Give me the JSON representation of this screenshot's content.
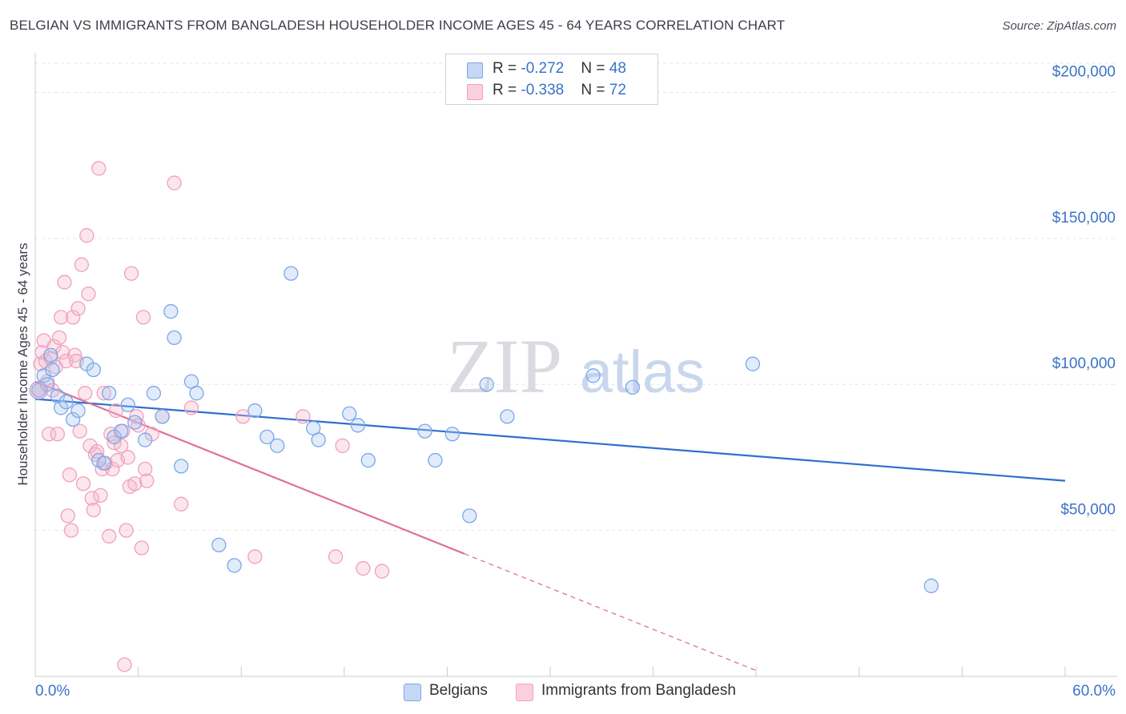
{
  "title": "BELGIAN VS IMMIGRANTS FROM BANGLADESH HOUSEHOLDER INCOME AGES 45 - 64 YEARS CORRELATION CHART",
  "source": "Source: ZipAtlas.com",
  "watermark": {
    "zip": "ZIP",
    "atlas": "atlas"
  },
  "legend": {
    "rows": [
      {
        "r_label": "R = ",
        "r_value": "-0.272",
        "n_label": "N = ",
        "n_value": "48"
      },
      {
        "r_label": "R = ",
        "r_value": "-0.338",
        "n_label": "N = ",
        "n_value": "72"
      }
    ]
  },
  "chart_data": {
    "type": "scatter",
    "title": "BELGIAN VS IMMIGRANTS FROM BANGLADESH HOUSEHOLDER INCOME AGES 45 - 64 YEARS CORRELATION CHART",
    "xlabel": "",
    "ylabel": "Householder Income Ages 45 - 64 years",
    "xlim": [
      0,
      60
    ],
    "ylim": [
      0,
      210000
    ],
    "x_tick_labels": [
      "0.0%",
      "60.0%"
    ],
    "y_ticks": [
      50000,
      100000,
      150000,
      200000
    ],
    "y_tick_labels": [
      "$50,000",
      "$100,000",
      "$150,000",
      "$200,000"
    ],
    "grid": true,
    "legend_position": "top-center",
    "colors": {
      "belgians": "#7aa7e8",
      "bangladesh": "#f0a0bb",
      "belgians_line": "#2f6fd0",
      "bangladesh_line": "#e0709a",
      "tick_label": "#3a73c8"
    },
    "series": [
      {
        "name": "Belgians",
        "r": -0.272,
        "n": 48,
        "trend": {
          "x0": 0.0,
          "y0": 95000,
          "x1": 60.0,
          "y1": 67000
        },
        "points": [
          [
            0.2,
            98000
          ],
          [
            0.5,
            103000
          ],
          [
            0.7,
            100000
          ],
          [
            0.9,
            110000
          ],
          [
            1.0,
            105000
          ],
          [
            1.3,
            96000
          ],
          [
            1.5,
            92000
          ],
          [
            1.8,
            94000
          ],
          [
            2.2,
            88000
          ],
          [
            2.5,
            91000
          ],
          [
            3.0,
            107000
          ],
          [
            3.4,
            105000
          ],
          [
            3.7,
            74000
          ],
          [
            4.0,
            73000
          ],
          [
            4.3,
            97000
          ],
          [
            4.6,
            82000
          ],
          [
            5.0,
            84000
          ],
          [
            5.4,
            93000
          ],
          [
            5.8,
            87000
          ],
          [
            6.4,
            81000
          ],
          [
            6.9,
            97000
          ],
          [
            7.4,
            89000
          ],
          [
            7.9,
            125000
          ],
          [
            8.1,
            116000
          ],
          [
            8.5,
            72000
          ],
          [
            9.1,
            101000
          ],
          [
            9.4,
            97000
          ],
          [
            10.7,
            45000
          ],
          [
            11.6,
            38000
          ],
          [
            12.8,
            91000
          ],
          [
            13.5,
            82000
          ],
          [
            14.1,
            79000
          ],
          [
            14.9,
            138000
          ],
          [
            16.2,
            85000
          ],
          [
            16.5,
            81000
          ],
          [
            18.3,
            90000
          ],
          [
            18.8,
            86000
          ],
          [
            19.4,
            74000
          ],
          [
            22.7,
            84000
          ],
          [
            23.3,
            74000
          ],
          [
            24.3,
            83000
          ],
          [
            25.3,
            55000
          ],
          [
            26.3,
            100000
          ],
          [
            27.5,
            89000
          ],
          [
            32.5,
            103000
          ],
          [
            34.8,
            99000
          ],
          [
            41.8,
            107000
          ],
          [
            52.2,
            31000
          ]
        ]
      },
      {
        "name": "Immigrants from Bangladesh",
        "r": -0.338,
        "n": 72,
        "trend": {
          "x0": 0.0,
          "y0": 101000,
          "x1": 25.0,
          "y1": 42000,
          "dash_x1": 42.0,
          "dash_y1": 2000
        },
        "points": [
          [
            0.2,
            98000
          ],
          [
            0.3,
            107000
          ],
          [
            0.4,
            111000
          ],
          [
            0.5,
            115000
          ],
          [
            0.6,
            108000
          ],
          [
            0.7,
            101000
          ],
          [
            0.8,
            83000
          ],
          [
            0.9,
            109000
          ],
          [
            1.0,
            98000
          ],
          [
            1.1,
            113000
          ],
          [
            1.2,
            106000
          ],
          [
            1.3,
            83000
          ],
          [
            1.4,
            116000
          ],
          [
            1.5,
            123000
          ],
          [
            1.6,
            111000
          ],
          [
            1.7,
            135000
          ],
          [
            1.8,
            108000
          ],
          [
            1.9,
            55000
          ],
          [
            2.0,
            69000
          ],
          [
            2.1,
            50000
          ],
          [
            2.2,
            123000
          ],
          [
            2.3,
            110000
          ],
          [
            2.4,
            108000
          ],
          [
            2.5,
            126000
          ],
          [
            2.6,
            84000
          ],
          [
            2.7,
            141000
          ],
          [
            2.8,
            66000
          ],
          [
            2.9,
            97000
          ],
          [
            3.0,
            151000
          ],
          [
            3.1,
            131000
          ],
          [
            3.2,
            79000
          ],
          [
            3.3,
            61000
          ],
          [
            3.4,
            57000
          ],
          [
            3.5,
            76000
          ],
          [
            3.6,
            77000
          ],
          [
            3.7,
            174000
          ],
          [
            3.8,
            62000
          ],
          [
            3.9,
            71000
          ],
          [
            4.0,
            97000
          ],
          [
            4.1,
            73000
          ],
          [
            4.3,
            48000
          ],
          [
            4.4,
            83000
          ],
          [
            4.5,
            71000
          ],
          [
            4.6,
            80000
          ],
          [
            4.7,
            91000
          ],
          [
            4.8,
            74000
          ],
          [
            5.0,
            79000
          ],
          [
            5.1,
            84000
          ],
          [
            5.2,
            4000
          ],
          [
            5.3,
            50000
          ],
          [
            5.4,
            75000
          ],
          [
            5.5,
            65000
          ],
          [
            5.6,
            138000
          ],
          [
            5.8,
            66000
          ],
          [
            6.0,
            86000
          ],
          [
            6.2,
            44000
          ],
          [
            6.3,
            123000
          ],
          [
            6.4,
            71000
          ],
          [
            6.5,
            67000
          ],
          [
            6.8,
            83000
          ],
          [
            7.4,
            89000
          ],
          [
            8.1,
            169000
          ],
          [
            8.5,
            59000
          ],
          [
            9.1,
            92000
          ],
          [
            12.1,
            89000
          ],
          [
            12.8,
            41000
          ],
          [
            15.6,
            89000
          ],
          [
            17.5,
            41000
          ],
          [
            17.9,
            79000
          ],
          [
            19.1,
            37000
          ],
          [
            20.2,
            36000
          ],
          [
            5.9,
            89000
          ]
        ]
      }
    ]
  },
  "bottom_legend": {
    "belgians": "Belgians",
    "bangladesh": "Immigrants from Bangladesh"
  }
}
